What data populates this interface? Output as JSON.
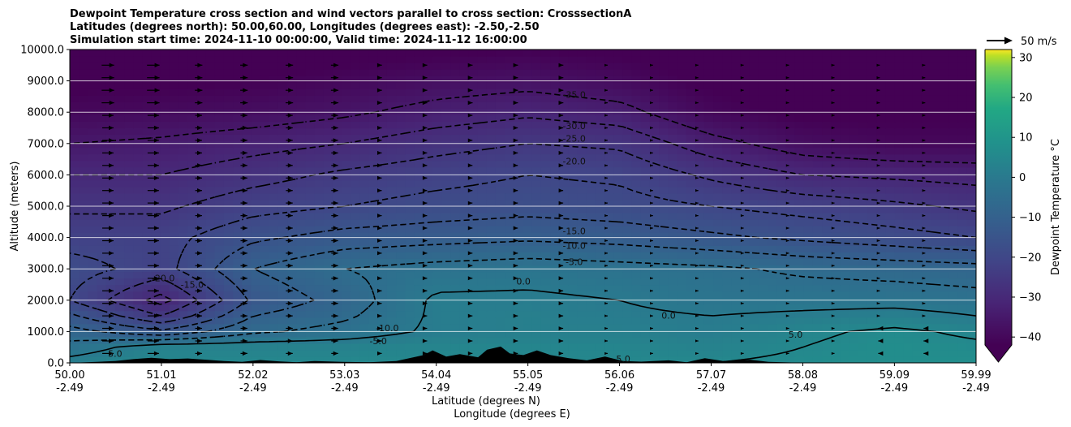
{
  "title_lines": [
    "Dewpoint Temperature cross section and wind vectors parallel to cross section: CrosssectionA",
    "Latitudes (degrees north): 50.00,60.00, Longitudes (degrees east): -2.50,-2.50",
    "Simulation start time: 2024-11-10 00:00:00, Valid time: 2024-11-12 16:00:00"
  ],
  "axes": {
    "ylabel": "Altitude (meters)",
    "xlabel_lat": "Latitude (degrees N)",
    "xlabel_lon": "Longitude (degrees E)",
    "yticks": [
      "0.0",
      "1000.0",
      "2000.0",
      "3000.0",
      "4000.0",
      "5000.0",
      "6000.0",
      "7000.0",
      "8000.0",
      "9000.0",
      "10000.0"
    ],
    "ytick_values": [
      0,
      1000,
      2000,
      3000,
      4000,
      5000,
      6000,
      7000,
      8000,
      9000,
      10000
    ],
    "xticks_lat": [
      "50.00",
      "51.01",
      "52.02",
      "53.03",
      "54.04",
      "55.05",
      "56.06",
      "57.07",
      "58.08",
      "59.09",
      "59.99"
    ],
    "xticks_lon": [
      "-2.49",
      "-2.49",
      "-2.49",
      "-2.49",
      "-2.49",
      "-2.49",
      "-2.49",
      "-2.49",
      "-2.49",
      "-2.49",
      "-2.49"
    ],
    "xtick_values": [
      50.0,
      51.01,
      52.02,
      53.03,
      54.04,
      55.05,
      56.06,
      57.07,
      58.08,
      59.09,
      59.99
    ],
    "xlim": [
      50.0,
      59.99
    ],
    "ylim": [
      0,
      10000
    ],
    "grid": "horizontal"
  },
  "colorbar": {
    "label": "Dewpoint Temperature °C",
    "ticks": [
      "−40",
      "−30",
      "−20",
      "−10",
      "0",
      "10",
      "20",
      "30"
    ],
    "tick_values": [
      -40,
      -30,
      -20,
      -10,
      0,
      10,
      20,
      30
    ],
    "range": [
      -42,
      32
    ],
    "extend": "min",
    "colormap": "viridis"
  },
  "wind_key": {
    "label": "50 m/s"
  },
  "chart_data": {
    "type": "heatmap",
    "variable": "Dewpoint Temperature",
    "units": "°C",
    "x_lat": [
      50.0,
      51.01,
      52.02,
      53.03,
      54.04,
      55.05,
      56.06,
      57.07,
      58.08,
      59.09,
      59.99
    ],
    "y_altitude": [
      0,
      500,
      1000,
      1500,
      2000,
      3000,
      4000,
      5000,
      6000,
      7000,
      8000,
      9000,
      10000
    ],
    "values": [
      [
        2,
        5,
        5,
        5,
        5,
        5,
        5,
        5,
        6,
        7,
        7
      ],
      [
        -3,
        3,
        3,
        3,
        4,
        4,
        4,
        3,
        5,
        7,
        6
      ],
      [
        -8,
        -14,
        -6,
        -3,
        1,
        2,
        2,
        1,
        4,
        6,
        4
      ],
      [
        -14,
        -25,
        -10,
        -6,
        1,
        2,
        1,
        0,
        1,
        2,
        0
      ],
      [
        -20,
        -32,
        -14,
        -8,
        1,
        1,
        0,
        -2,
        -2,
        -2,
        -3
      ],
      [
        -18,
        -22,
        -10,
        -5,
        -3,
        -2,
        -3,
        -4,
        -6,
        -7,
        -8
      ],
      [
        -22,
        -22,
        -16,
        -13,
        -12,
        -11,
        -12,
        -14,
        -16,
        -18,
        -20
      ],
      [
        -26,
        -26,
        -22,
        -20,
        -18,
        -17,
        -18,
        -20,
        -22,
        -24,
        -26
      ],
      [
        -30,
        -30,
        -27,
        -24,
        -22,
        -20,
        -21,
        -26,
        -30,
        -31,
        -32
      ],
      [
        -35,
        -34,
        -32,
        -30,
        -27,
        -25,
        -26,
        -33,
        -38,
        -40,
        -40
      ],
      [
        -40,
        -39,
        -38,
        -36,
        -33,
        -31,
        -33,
        -40,
        -43,
        -43,
        -43
      ],
      [
        -43,
        -43,
        -42,
        -40,
        -38,
        -37,
        -39,
        -43,
        -45,
        -45,
        -45
      ],
      [
        -45,
        -45,
        -45,
        -44,
        -43,
        -42,
        -43,
        -45,
        -46,
        -46,
        -46
      ]
    ],
    "contour_labels": [
      {
        "text": "-35.0",
        "lat": 55.56,
        "alt": 8460
      },
      {
        "text": "-30.0",
        "lat": 55.56,
        "alt": 7460
      },
      {
        "text": "-25.0",
        "lat": 55.56,
        "alt": 7060
      },
      {
        "text": "-20.0",
        "lat": 55.56,
        "alt": 6330
      },
      {
        "text": "-15.0",
        "lat": 55.56,
        "alt": 4110
      },
      {
        "text": "-10.0",
        "lat": 55.56,
        "alt": 3640
      },
      {
        "text": "-5.0",
        "lat": 55.56,
        "alt": 3120
      },
      {
        "text": "0.0",
        "lat": 55.0,
        "alt": 2500
      },
      {
        "text": "-20.0",
        "lat": 51.03,
        "alt": 2600
      },
      {
        "text": "-15.0",
        "lat": 51.35,
        "alt": 2400
      },
      {
        "text": "-10.0",
        "lat": 53.5,
        "alt": 1010
      },
      {
        "text": "-5.0",
        "lat": 53.4,
        "alt": 600
      },
      {
        "text": "0.0",
        "lat": 56.6,
        "alt": 1410
      },
      {
        "text": "5.0",
        "lat": 58.0,
        "alt": 800
      },
      {
        "text": "5.0",
        "lat": 56.1,
        "alt": 30
      },
      {
        "text": "5.0",
        "lat": 50.5,
        "alt": 200
      }
    ],
    "solid_contours": [
      0.0,
      5.0
    ],
    "dashed_contours": [
      -5.0,
      -10.0,
      -15.0,
      -20.0,
      -25.0,
      -30.0,
      -35.0
    ]
  }
}
